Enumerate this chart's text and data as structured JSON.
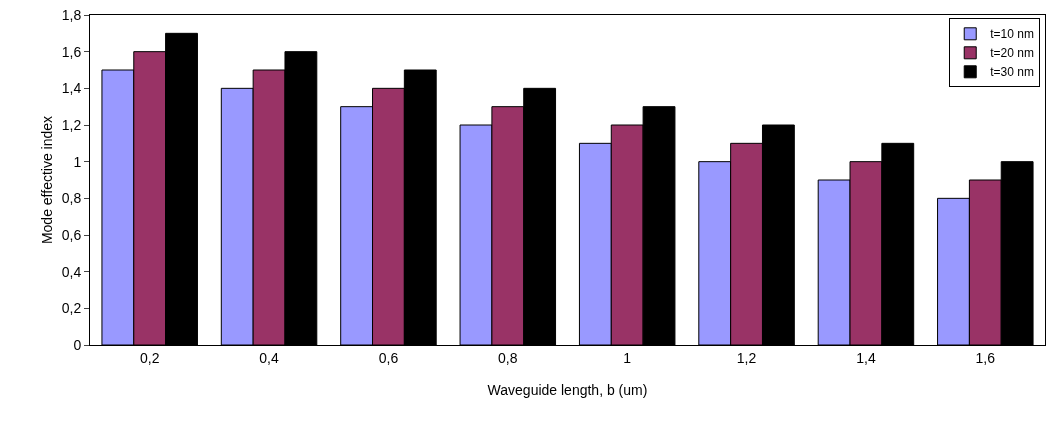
{
  "chart_data": {
    "type": "bar",
    "xlabel": "Waveguide length, b (um)",
    "ylabel": "Mode effective index",
    "categories": [
      "0,2",
      "0,4",
      "0,6",
      "0,8",
      "1",
      "1,2",
      "1,4",
      "1,6"
    ],
    "series": [
      {
        "name": "t=10 nm",
        "color": "#9999ff",
        "values": [
          1.5,
          1.4,
          1.3,
          1.2,
          1.1,
          1.0,
          0.9,
          0.8
        ]
      },
      {
        "name": "t=20 nm",
        "color": "#993366",
        "values": [
          1.6,
          1.5,
          1.4,
          1.3,
          1.2,
          1.1,
          1.0,
          0.9
        ]
      },
      {
        "name": "t=30 nm",
        "color": "#000000",
        "values": [
          1.7,
          1.6,
          1.5,
          1.4,
          1.3,
          1.2,
          1.1,
          1.0
        ]
      }
    ],
    "ylim": [
      0,
      1.8
    ],
    "yticks": [
      {
        "value": 0,
        "label": "0"
      },
      {
        "value": 0.2,
        "label": "0,2"
      },
      {
        "value": 0.4,
        "label": "0,4"
      },
      {
        "value": 0.6,
        "label": "0,6"
      },
      {
        "value": 0.8,
        "label": "0,8"
      },
      {
        "value": 1,
        "label": "1"
      },
      {
        "value": 1.2,
        "label": "1,2"
      },
      {
        "value": 1.4,
        "label": "1,4"
      },
      {
        "value": 1.6,
        "label": "1,6"
      },
      {
        "value": 1.8,
        "label": "1,8"
      }
    ],
    "grid": false,
    "legend": "top right"
  }
}
